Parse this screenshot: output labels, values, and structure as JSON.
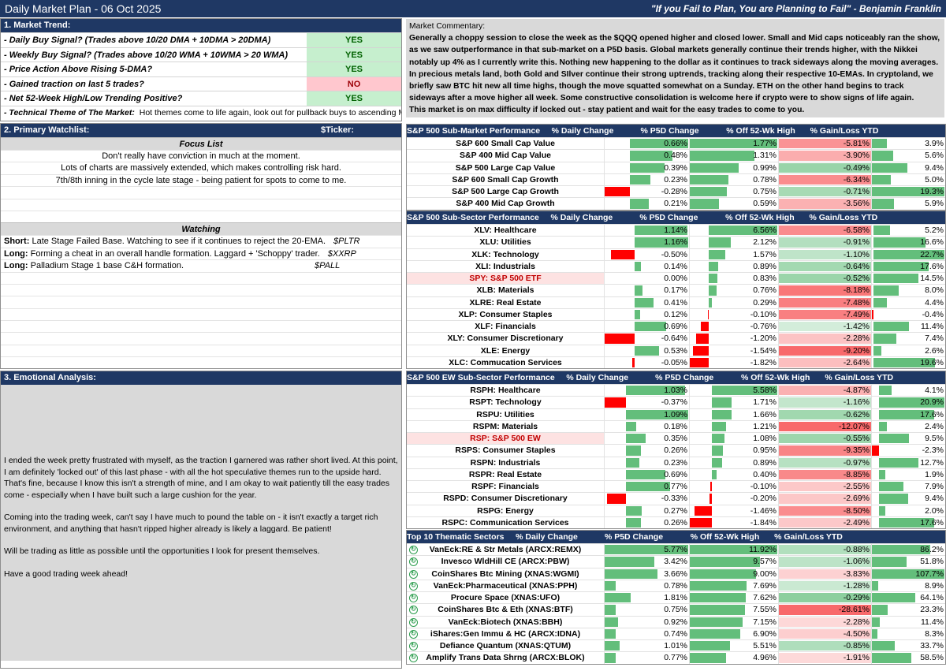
{
  "title": "Daily Market Plan - 06 Oct 2025",
  "quote": "\"If you Fail to Plan, You are Planning to Fail\" - Benjamin Franklin",
  "colors": {
    "header": "#1f3864",
    "pos": "#63be7b",
    "neg": "#f8696b",
    "neg_bar": "#ff0000",
    "yes_bg": "#c6efce",
    "no_bg": "#ffc7ce"
  },
  "trend": {
    "header": "1. Market Trend:",
    "rows": [
      {
        "label": "- Daily Buy Signal? (Trades above 10/20 DMA + 10DMA > 20DMA)",
        "value": "YES"
      },
      {
        "label": "- Weekly Buy Signal? (Trades above 10/20 WMA + 10WMA > 20 WMA)",
        "value": "YES"
      },
      {
        "label": "- Price Action Above Rising 5-DMA?",
        "value": "YES"
      },
      {
        "label": "- Gained traction on last 5 trades?",
        "value": "NO"
      },
      {
        "label": "- Net 52-Week High/Low Trending Positive?",
        "value": "YES"
      }
    ],
    "theme_label": "- Technical Theme of The Market:",
    "theme_text": "Hot themes come to life again, look out for pullback buys to ascending MAs"
  },
  "watchlist": {
    "header": "2. Primary Watchlist:",
    "ticker_header": "$Ticker:",
    "focus_header": "Focus List",
    "focus": [
      "Don't really have conviction in much at the moment.",
      "Lots of charts are massively extended, which makes controlling risk hard.",
      "7th/8th inning in the cycle late stage - being patient for spots to come to me."
    ],
    "watching_header": "Watching",
    "watching": [
      {
        "type": "Short:",
        "text": "Late Stage Failed Base. Watching to see if it continues to reject the 20-EMA.",
        "ticker": "$PLTR"
      },
      {
        "type": "Long:",
        "text": "Forming a cheat in an overall handle formation. Laggard + 'Schoppy' trader.",
        "ticker": "$XXRP"
      },
      {
        "type": "Long:",
        "text": "Palladium Stage 1 base C&H formation.",
        "ticker": "$PALL"
      }
    ]
  },
  "emotional": {
    "header": "3. Emotional Analysis:",
    "paragraphs": [
      "I ended the week pretty frustrated with myself, as the traction I garnered was rather short lived. At this point, I am definitely 'locked out' of this last phase - with all the hot speculative themes run to the upside hard. That's fine, because I know this isn't a strength of mine, and I am okay to wait patiently till the easy trades come - especially when I have built such a large cushion for the year.",
      "Coming into the trading week, can't say I have much to pound the table on - it isn't exactly a target rich environment, and anything that hasn't ripped higher already is likely a laggard. Be patient!",
      "Will be trading as little as possible until the opportunities I look for present themselves.",
      "Have a good trading week ahead!"
    ]
  },
  "commentary": {
    "header": "Market Commentary:",
    "body": "Generally a choppy session to close the week as the $QQQ opened higher and closed lower. Small and Mid caps noticeably ran the show, as we saw outperformance in that sub-market on a P5D basis. Global markets generally continue their trends higher, with the Nikkei notably up 4% as I currently write this. Nothing new happening to the dollar as it continues to track sideways along the moving averages. In precious metals land, both Gold and SIlver continue their strong uptrends, tracking along their respective 10-EMAs. In cryptoland, we briefly saw BTC hit new all time highs, though the move squatted somewhat on a Sunday. ETH on the other hand begins to track sideways after a move higher all week. Some constructive consolidation is welcome here if crypto were to show signs of life again.",
    "closing": "This market is on max difficulty if locked out - stay patient and wait for the easy trades to come to you."
  },
  "columns": [
    "% Daily Change",
    "% P5D Change",
    "% Off 52-Wk High",
    "% Gain/Loss YTD"
  ],
  "tables": [
    {
      "title": "S&P 500 Sub-Market Performance",
      "rows": [
        {
          "name": "S&P 600 Small Cap Value",
          "d": 0.66,
          "p": 1.77,
          "o": -5.81,
          "y": 3.9
        },
        {
          "name": "S&P 400 Mid Cap Value",
          "d": 0.48,
          "p": 1.31,
          "o": -3.9,
          "y": 5.6
        },
        {
          "name": "S&P 500 Large Cap Value",
          "d": 0.39,
          "p": 0.99,
          "o": -0.49,
          "y": 9.4
        },
        {
          "name": "S&P 600 Small Cap Growth",
          "d": 0.23,
          "p": 0.78,
          "o": -6.34,
          "y": 5.0
        },
        {
          "name": "S&P 500 Large Cap Growth",
          "d": -0.28,
          "p": 0.75,
          "o": -0.71,
          "y": 19.3
        },
        {
          "name": "S&P 400 Mid Cap Growth",
          "d": 0.21,
          "p": 0.59,
          "o": -3.56,
          "y": 5.9
        }
      ]
    },
    {
      "title": "S&P 500 Sub-Sector Performance",
      "rows": [
        {
          "name": "XLV: Healthcare",
          "d": 1.14,
          "p": 6.56,
          "o": -6.58,
          "y": 5.2
        },
        {
          "name": "XLU: Utilities",
          "d": 1.16,
          "p": 2.12,
          "o": -0.91,
          "y": 16.6
        },
        {
          "name": "XLK: Technology",
          "d": -0.5,
          "p": 1.57,
          "o": -1.1,
          "y": 22.7
        },
        {
          "name": "XLI: Industrials",
          "d": 0.14,
          "p": 0.89,
          "o": -0.64,
          "y": 17.6
        },
        {
          "name": "SPY: S&P 500 ETF",
          "d": 0.0,
          "p": 0.83,
          "o": -0.52,
          "y": 14.5,
          "hl": true
        },
        {
          "name": "XLB: Materials",
          "d": 0.17,
          "p": 0.76,
          "o": -8.18,
          "y": 8.0
        },
        {
          "name": "XLRE: Real Estate",
          "d": 0.41,
          "p": 0.29,
          "o": -7.48,
          "y": 4.4
        },
        {
          "name": "XLP: Consumer Staples",
          "d": 0.12,
          "p": -0.1,
          "o": -7.49,
          "y": -0.4
        },
        {
          "name": "XLF: Financials",
          "d": 0.69,
          "p": -0.76,
          "o": -1.42,
          "y": 11.4
        },
        {
          "name": "XLY: Consumer Discretionary",
          "d": -0.64,
          "p": -1.2,
          "o": -2.28,
          "y": 7.4
        },
        {
          "name": "XLE: Energy",
          "d": 0.53,
          "p": -1.54,
          "o": -9.2,
          "y": 2.6
        },
        {
          "name": "XLC: Commucation Services",
          "d": -0.05,
          "p": -1.82,
          "o": -2.64,
          "y": 19.6
        }
      ]
    },
    {
      "title": "S&P 500 EW Sub-Sector Performance",
      "rows": [
        {
          "name": "RSPH: Healthcare",
          "d": 1.03,
          "p": 5.58,
          "o": -4.87,
          "y": 4.1
        },
        {
          "name": "RSPT: Technology",
          "d": -0.37,
          "p": 1.71,
          "o": -1.16,
          "y": 20.9
        },
        {
          "name": "RSPU: Utilities",
          "d": 1.09,
          "p": 1.66,
          "o": -0.62,
          "y": 17.6
        },
        {
          "name": "RSPM: Materials",
          "d": 0.18,
          "p": 1.21,
          "o": -12.07,
          "y": 2.4
        },
        {
          "name": "RSP: S&P 500 EW",
          "d": 0.35,
          "p": 1.08,
          "o": -0.55,
          "y": 9.5,
          "hl": true
        },
        {
          "name": "RSPS: Consumer Staples",
          "d": 0.26,
          "p": 0.95,
          "o": -9.35,
          "y": -2.3
        },
        {
          "name": "RSPN: Industrials",
          "d": 0.23,
          "p": 0.89,
          "o": -0.97,
          "y": 12.7
        },
        {
          "name": "RSPR: Real Estate",
          "d": 0.69,
          "p": 0.4,
          "o": -8.85,
          "y": 1.9
        },
        {
          "name": "RSPF: Financials",
          "d": 0.77,
          "p": -0.1,
          "o": -2.55,
          "y": 7.9
        },
        {
          "name": "RSPD: Consumer Discretionary",
          "d": -0.33,
          "p": -0.2,
          "o": -2.69,
          "y": 9.4
        },
        {
          "name": "RSPG: Energy",
          "d": 0.27,
          "p": -1.46,
          "o": -8.5,
          "y": 2.0
        },
        {
          "name": "RSPC: Communication Services",
          "d": 0.26,
          "p": -1.84,
          "o": -2.49,
          "y": 17.6
        }
      ]
    },
    {
      "title": "Top 10 Thematic Sectors",
      "icons": true,
      "rows": [
        {
          "name": "VanEck:RE & Str Metals (ARCX:REMX)",
          "d": 5.77,
          "p": 11.92,
          "o": -0.88,
          "y": 86.2
        },
        {
          "name": "Invesco WldHill CE (ARCX:PBW)",
          "d": 3.42,
          "p": 9.57,
          "o": -1.06,
          "y": 51.8
        },
        {
          "name": "CoinShares Btc Mining (XNAS:WGMI)",
          "d": 3.66,
          "p": 9.0,
          "o": -3.83,
          "y": 107.7
        },
        {
          "name": "VanEck:Pharmaceutical (XNAS:PPH)",
          "d": 0.78,
          "p": 7.69,
          "o": -1.28,
          "y": 8.9
        },
        {
          "name": "Procure Space (XNAS:UFO)",
          "d": 1.81,
          "p": 7.62,
          "o": -0.29,
          "y": 64.1
        },
        {
          "name": "CoinShares Btc & Eth (XNAS:BTF)",
          "d": 0.75,
          "p": 7.55,
          "o": -28.61,
          "y": 23.3
        },
        {
          "name": "VanEck:Biotech (XNAS:BBH)",
          "d": 0.92,
          "p": 7.15,
          "o": -2.28,
          "y": 11.4
        },
        {
          "name": "iShares:Gen Immu & HC (ARCX:IDNA)",
          "d": 0.74,
          "p": 6.9,
          "o": -4.5,
          "y": 8.3
        },
        {
          "name": "Defiance Quantum (XNAS:QTUM)",
          "d": 1.01,
          "p": 5.51,
          "o": -0.85,
          "y": 33.7
        },
        {
          "name": "Amplify Trans Data Shrng (ARCX:BLOK)",
          "d": 0.77,
          "p": 4.96,
          "o": -1.91,
          "y": 58.5
        }
      ]
    }
  ]
}
